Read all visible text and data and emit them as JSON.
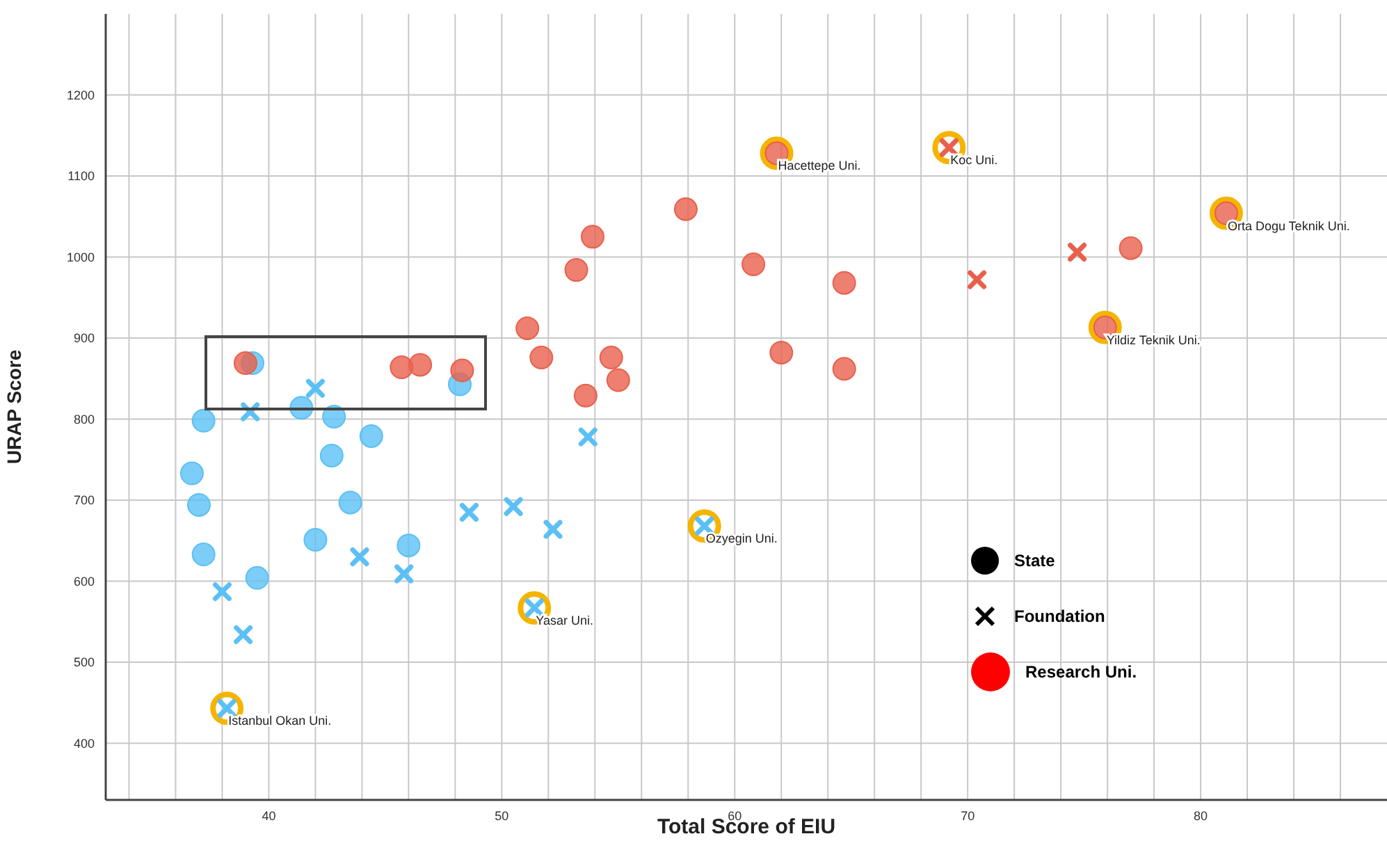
{
  "chart_data": {
    "type": "scatter",
    "xlabel": "Total Score of EIU",
    "ylabel": "URAP Score",
    "xlim": [
      33,
      88
    ],
    "ylim": [
      330,
      1300
    ],
    "xticks": [
      {
        "value": 34,
        "label": null
      },
      {
        "value": 36,
        "label": null
      },
      {
        "value": 38,
        "label": null
      },
      40,
      {
        "value": 42,
        "label": null
      },
      {
        "value": 44,
        "label": null
      },
      {
        "value": 46,
        "label": null
      },
      {
        "value": 48,
        "label": null
      },
      50,
      {
        "value": 52,
        "label": null
      },
      {
        "value": 54,
        "label": null
      },
      {
        "value": 56,
        "label": null
      },
      {
        "value": 58,
        "label": null
      },
      60,
      {
        "value": 62,
        "label": null
      },
      {
        "value": 64,
        "label": null
      },
      {
        "value": 66,
        "label": null
      },
      {
        "value": 68,
        "label": null
      },
      70,
      {
        "value": 72,
        "label": null
      },
      {
        "value": 74,
        "label": null
      },
      {
        "value": 76,
        "label": null
      },
      {
        "value": 78,
        "label": null
      },
      80,
      {
        "value": 82,
        "label": null
      },
      {
        "value": 84,
        "label": null
      },
      {
        "value": 86,
        "label": null
      }
    ],
    "yticks": [
      400,
      500,
      600,
      700,
      800,
      900,
      1000,
      1100,
      1200
    ],
    "grid": true,
    "series": [
      {
        "color": "#5bc0f5",
        "marker": "circle",
        "x": [
          39.3,
          37.2,
          36.7,
          37.0,
          37.2,
          39.5,
          41.4,
          42.8,
          42.7,
          44.4,
          43.5,
          42.0,
          46.0,
          48.2
        ],
        "values": [
          869,
          798,
          733,
          694,
          633,
          604,
          814,
          803,
          755,
          779,
          697,
          651,
          644,
          843
        ]
      },
      {
        "color": "#5bc0f5",
        "marker": "cross",
        "x": [
          39.2,
          42.0,
          38.0,
          38.9,
          43.9,
          45.8,
          48.6,
          50.5,
          52.2,
          53.7,
          51.4,
          58.7,
          38.2
        ],
        "values": [
          809,
          838,
          587,
          534,
          630,
          609,
          685,
          692,
          664,
          778,
          567,
          668,
          443
        ]
      },
      {
        "color": "#e8604c",
        "marker": "circle",
        "x": [
          39.0,
          45.7,
          46.5,
          48.3,
          51.1,
          51.7,
          54.7,
          55.0,
          53.6,
          53.2,
          53.9,
          57.9,
          60.8,
          62.0,
          64.7,
          64.7,
          61.8,
          75.9,
          77.0,
          81.1
        ],
        "values": [
          869,
          864,
          867,
          860,
          912,
          876,
          876,
          848,
          829,
          984,
          1025,
          1059,
          991,
          882,
          968,
          862,
          1128,
          913,
          1011,
          1054
        ]
      },
      {
        "color": "#e8604c",
        "marker": "cross",
        "x": [
          69.2,
          70.4,
          74.7
        ],
        "values": [
          1135,
          972,
          1006
        ]
      }
    ],
    "annotations": [
      {
        "text": "Hacettepe Uni.",
        "x": 61.8,
        "y": 1128
      },
      {
        "text": "Koc Uni.",
        "x": 69.2,
        "y": 1135
      },
      {
        "text": "Orta Dogu Teknik Uni.",
        "x": 81.1,
        "y": 1054
      },
      {
        "text": "Yildiz Teknik Uni.",
        "x": 75.9,
        "y": 913
      },
      {
        "text": "Ozyegin Uni.",
        "x": 58.7,
        "y": 668
      },
      {
        "text": "Yasar Uni.",
        "x": 51.4,
        "y": 567
      },
      {
        "text": "Istanbul Okan Uni.",
        "x": 38.2,
        "y": 443
      },
      "State",
      "Foundation",
      "Research Uni."
    ]
  }
}
